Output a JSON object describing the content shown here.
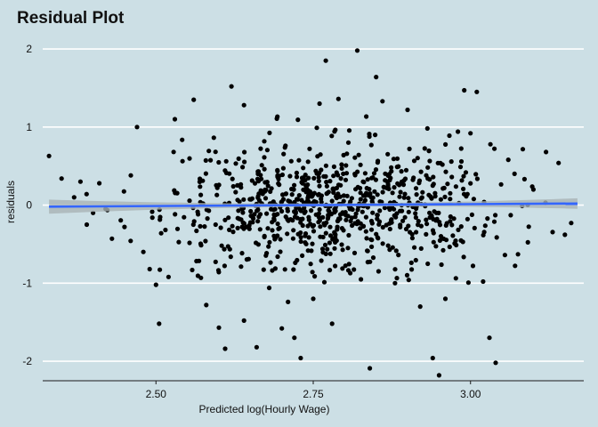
{
  "chart_data": {
    "type": "scatter",
    "title": "Residual Plot",
    "xlabel": "Predicted log(Hourly Wage)",
    "ylabel": "residuals",
    "xlim": [
      2.32,
      3.18
    ],
    "ylim": [
      -2.25,
      2.08
    ],
    "x_ticks": [
      2.5,
      2.75,
      3.0
    ],
    "x_tick_labels": [
      "2.50",
      "2.75",
      "3.00"
    ],
    "y_ticks": [
      -2,
      -1,
      0,
      1,
      2
    ],
    "y_tick_labels": [
      "-2",
      "-1",
      "0",
      "1",
      "2"
    ],
    "grid": "horizontal major lines",
    "colors": {
      "background": "#ccdfe5",
      "points": "#000000",
      "smooth_line": "#3366ff",
      "confidence_band": "#a9b3b5",
      "grid": "#ffffff"
    },
    "smooth": {
      "x": [
        2.33,
        3.17
      ],
      "y": [
        -0.02,
        0.02
      ],
      "band_halfwidth_ends": 0.09,
      "band_halfwidth_mid": 0.02
    },
    "points": [
      [
        2.33,
        0.63
      ],
      [
        2.35,
        0.34
      ],
      [
        2.37,
        0.1
      ],
      [
        2.38,
        0.3
      ],
      [
        2.39,
        -0.25
      ],
      [
        2.4,
        -0.1
      ],
      [
        2.41,
        0.28
      ],
      [
        2.42,
        -0.05
      ],
      [
        2.43,
        -0.43
      ],
      [
        2.45,
        -0.28
      ],
      [
        2.46,
        0.38
      ],
      [
        2.47,
        1.0
      ],
      [
        2.48,
        -0.6
      ],
      [
        2.49,
        -0.82
      ],
      [
        2.5,
        -1.02
      ],
      [
        2.505,
        -1.52
      ],
      [
        2.52,
        -0.92
      ],
      [
        2.53,
        1.1
      ],
      [
        2.56,
        1.35
      ],
      [
        2.58,
        -1.28
      ],
      [
        2.6,
        -1.57
      ],
      [
        2.61,
        -1.84
      ],
      [
        2.62,
        1.52
      ],
      [
        2.64,
        -1.48
      ],
      [
        2.64,
        1.28
      ],
      [
        2.66,
        -1.82
      ],
      [
        2.68,
        -1.06
      ],
      [
        2.7,
        -1.58
      ],
      [
        2.71,
        -1.24
      ],
      [
        2.72,
        -1.7
      ],
      [
        2.73,
        -1.96
      ],
      [
        2.75,
        -1.2
      ],
      [
        2.78,
        -1.52
      ],
      [
        2.77,
        1.85
      ],
      [
        2.82,
        1.98
      ],
      [
        2.85,
        1.64
      ],
      [
        2.86,
        1.33
      ],
      [
        2.88,
        -1.0
      ],
      [
        2.9,
        1.22
      ],
      [
        2.94,
        -1.96
      ],
      [
        2.95,
        -2.18
      ],
      [
        2.96,
        -1.2
      ],
      [
        2.98,
        0.94
      ],
      [
        2.99,
        1.47
      ],
      [
        3.0,
        0.92
      ],
      [
        3.01,
        1.45
      ],
      [
        3.02,
        -0.98
      ],
      [
        3.03,
        -1.7
      ],
      [
        3.04,
        -2.02
      ],
      [
        3.06,
        0.58
      ],
      [
        3.07,
        0.4
      ],
      [
        3.1,
        0.2
      ],
      [
        3.12,
        0.68
      ],
      [
        3.14,
        0.54
      ],
      [
        3.15,
        -0.38
      ],
      [
        3.16,
        -0.23
      ],
      [
        2.84,
        -2.09
      ],
      [
        2.92,
        -1.3
      ],
      [
        2.79,
        1.36
      ],
      [
        2.76,
        1.3
      ]
    ]
  }
}
